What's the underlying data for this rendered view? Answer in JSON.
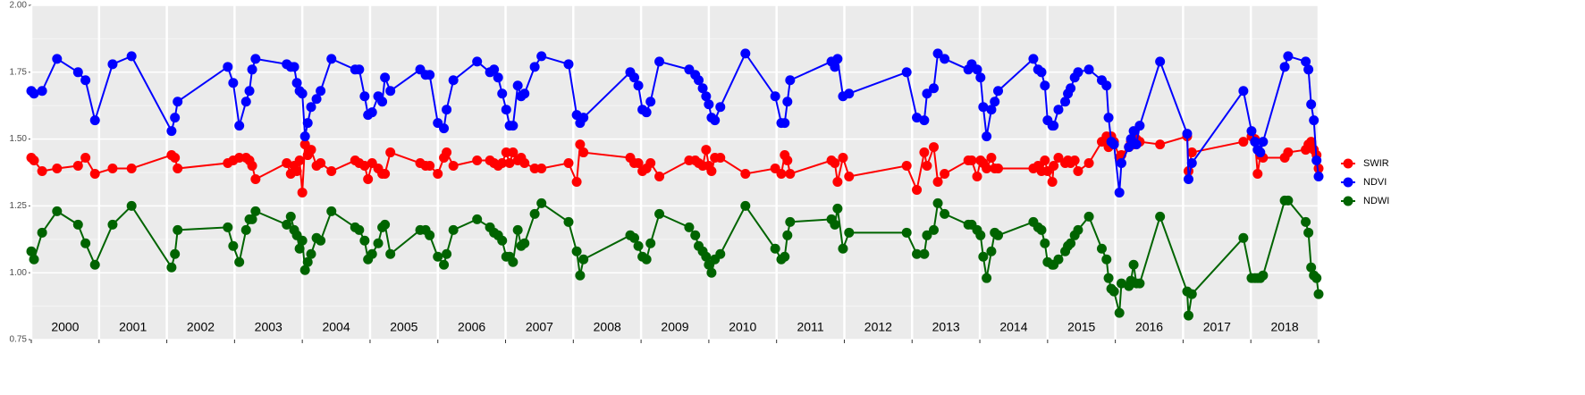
{
  "chart_data": {
    "type": "line",
    "x": [
      2000.0,
      2000.04,
      2000.16,
      2000.38,
      2000.69,
      2000.8,
      2000.94,
      2001.2,
      2001.48,
      2002.07,
      2002.12,
      2002.16,
      2002.9,
      2002.98,
      2003.07,
      2003.17,
      2003.22,
      2003.26,
      2003.31,
      2003.77,
      2003.83,
      2003.88,
      2003.92,
      2003.96,
      2004.0,
      2004.04,
      2004.08,
      2004.13,
      2004.21,
      2004.27,
      2004.43,
      2004.78,
      2004.84,
      2004.92,
      2004.97,
      2005.03,
      2005.12,
      2005.18,
      2005.22,
      2005.3,
      2005.74,
      2005.82,
      2005.88,
      2006.0,
      2006.09,
      2006.13,
      2006.23,
      2006.58,
      2006.77,
      2006.83,
      2006.89,
      2006.95,
      2007.01,
      2007.06,
      2007.11,
      2007.18,
      2007.23,
      2007.28,
      2007.43,
      2007.53,
      2007.93,
      2008.05,
      2008.1,
      2008.15,
      2008.84,
      2008.9,
      2008.96,
      2009.02,
      2009.08,
      2009.14,
      2009.27,
      2009.71,
      2009.8,
      2009.85,
      2009.91,
      2009.96,
      2010.0,
      2010.04,
      2010.09,
      2010.17,
      2010.54,
      2010.98,
      2011.07,
      2011.12,
      2011.16,
      2011.2,
      2011.81,
      2011.86,
      2011.9,
      2011.98,
      2012.07,
      2012.92,
      2013.07,
      2013.18,
      2013.22,
      2013.32,
      2013.38,
      2013.48,
      2013.83,
      2013.88,
      2013.96,
      2014.01,
      2014.05,
      2014.1,
      2014.17,
      2014.22,
      2014.27,
      2014.79,
      2014.86,
      2014.91,
      2014.96,
      2015.0,
      2015.07,
      2015.09,
      2015.16,
      2015.26,
      2015.3,
      2015.34,
      2015.4,
      2015.45,
      2015.61,
      2015.8,
      2015.87,
      2015.9,
      2015.94,
      2015.98,
      2016.06,
      2016.09,
      2016.2,
      2016.23,
      2016.27,
      2016.31,
      2016.36,
      2016.66,
      2017.06,
      2017.08,
      2017.13,
      2017.89,
      2018.01,
      2018.06,
      2018.1,
      2018.14,
      2018.18,
      2018.5,
      2018.55,
      2018.81,
      2018.85,
      2018.89,
      2018.93,
      2018.97,
      2019.0
    ],
    "series": [
      {
        "name": "SWIR",
        "color": "#ff0000",
        "values": [
          1.43,
          1.42,
          1.38,
          1.39,
          1.4,
          1.43,
          1.37,
          1.39,
          1.39,
          1.44,
          1.43,
          1.39,
          1.41,
          1.42,
          1.43,
          1.43,
          1.42,
          1.4,
          1.35,
          1.41,
          1.37,
          1.4,
          1.38,
          1.42,
          1.3,
          1.48,
          1.44,
          1.46,
          1.4,
          1.41,
          1.38,
          1.42,
          1.41,
          1.4,
          1.35,
          1.41,
          1.39,
          1.37,
          1.37,
          1.45,
          1.41,
          1.4,
          1.4,
          1.37,
          1.43,
          1.45,
          1.4,
          1.42,
          1.42,
          1.41,
          1.4,
          1.41,
          1.45,
          1.41,
          1.45,
          1.42,
          1.43,
          1.41,
          1.39,
          1.39,
          1.41,
          1.34,
          1.48,
          1.45,
          1.43,
          1.41,
          1.41,
          1.38,
          1.39,
          1.41,
          1.36,
          1.42,
          1.42,
          1.41,
          1.4,
          1.46,
          1.4,
          1.38,
          1.43,
          1.43,
          1.37,
          1.39,
          1.37,
          1.44,
          1.42,
          1.37,
          1.42,
          1.41,
          1.34,
          1.43,
          1.36,
          1.4,
          1.31,
          1.45,
          1.4,
          1.47,
          1.34,
          1.37,
          1.42,
          1.42,
          1.36,
          1.42,
          1.41,
          1.39,
          1.43,
          1.39,
          1.39,
          1.39,
          1.4,
          1.38,
          1.42,
          1.38,
          1.34,
          1.4,
          1.43,
          1.41,
          1.42,
          1.41,
          1.42,
          1.38,
          1.41,
          1.49,
          1.51,
          1.47,
          1.51,
          1.49,
          1.43,
          1.44,
          1.47,
          1.49,
          1.48,
          1.5,
          1.49,
          1.48,
          1.51,
          1.38,
          1.45,
          1.49,
          1.51,
          1.5,
          1.37,
          1.44,
          1.43,
          1.43,
          1.45,
          1.46,
          1.48,
          1.49,
          1.46,
          1.44,
          1.39
        ]
      },
      {
        "name": "NDVI",
        "color": "#0000ff",
        "values": [
          1.68,
          1.67,
          1.68,
          1.8,
          1.75,
          1.72,
          1.57,
          1.78,
          1.81,
          1.53,
          1.58,
          1.64,
          1.77,
          1.71,
          1.55,
          1.64,
          1.68,
          1.76,
          1.8,
          1.78,
          1.77,
          1.77,
          1.71,
          1.68,
          1.67,
          1.51,
          1.56,
          1.62,
          1.65,
          1.68,
          1.8,
          1.76,
          1.76,
          1.66,
          1.59,
          1.6,
          1.66,
          1.64,
          1.73,
          1.68,
          1.76,
          1.74,
          1.74,
          1.56,
          1.54,
          1.61,
          1.72,
          1.79,
          1.75,
          1.76,
          1.73,
          1.67,
          1.61,
          1.55,
          1.55,
          1.7,
          1.66,
          1.67,
          1.77,
          1.81,
          1.78,
          1.59,
          1.56,
          1.58,
          1.75,
          1.73,
          1.7,
          1.61,
          1.6,
          1.64,
          1.79,
          1.76,
          1.74,
          1.72,
          1.69,
          1.66,
          1.63,
          1.58,
          1.57,
          1.62,
          1.82,
          1.66,
          1.56,
          1.56,
          1.64,
          1.72,
          1.79,
          1.77,
          1.8,
          1.66,
          1.67,
          1.75,
          1.58,
          1.57,
          1.67,
          1.69,
          1.82,
          1.8,
          1.76,
          1.78,
          1.76,
          1.73,
          1.62,
          1.51,
          1.61,
          1.64,
          1.68,
          1.8,
          1.76,
          1.75,
          1.7,
          1.57,
          1.55,
          1.55,
          1.61,
          1.64,
          1.67,
          1.69,
          1.73,
          1.75,
          1.76,
          1.72,
          1.7,
          1.58,
          1.49,
          1.48,
          1.3,
          1.41,
          1.47,
          1.5,
          1.53,
          1.48,
          1.55,
          1.79,
          1.52,
          1.35,
          1.41,
          1.68,
          1.53,
          1.49,
          1.46,
          1.45,
          1.49,
          1.77,
          1.81,
          1.79,
          1.76,
          1.63,
          1.57,
          1.42,
          1.36
        ]
      },
      {
        "name": "NDWI",
        "color": "#006400",
        "values": [
          1.08,
          1.05,
          1.15,
          1.23,
          1.18,
          1.11,
          1.03,
          1.18,
          1.25,
          1.02,
          1.07,
          1.16,
          1.17,
          1.1,
          1.04,
          1.16,
          1.2,
          1.2,
          1.23,
          1.18,
          1.21,
          1.16,
          1.14,
          1.09,
          1.12,
          1.01,
          1.04,
          1.07,
          1.13,
          1.12,
          1.23,
          1.17,
          1.16,
          1.12,
          1.05,
          1.07,
          1.11,
          1.17,
          1.18,
          1.07,
          1.16,
          1.16,
          1.14,
          1.06,
          1.03,
          1.07,
          1.16,
          1.2,
          1.17,
          1.15,
          1.14,
          1.12,
          1.06,
          1.06,
          1.04,
          1.16,
          1.1,
          1.11,
          1.22,
          1.26,
          1.19,
          1.08,
          0.99,
          1.05,
          1.14,
          1.13,
          1.1,
          1.06,
          1.05,
          1.11,
          1.22,
          1.17,
          1.14,
          1.1,
          1.08,
          1.06,
          1.03,
          1.0,
          1.05,
          1.07,
          1.25,
          1.09,
          1.05,
          1.06,
          1.14,
          1.19,
          1.2,
          1.18,
          1.24,
          1.09,
          1.15,
          1.15,
          1.07,
          1.07,
          1.14,
          1.16,
          1.26,
          1.22,
          1.18,
          1.18,
          1.16,
          1.14,
          1.06,
          0.98,
          1.08,
          1.15,
          1.14,
          1.19,
          1.17,
          1.16,
          1.11,
          1.04,
          1.03,
          1.03,
          1.05,
          1.08,
          1.1,
          1.11,
          1.14,
          1.16,
          1.21,
          1.09,
          1.05,
          0.98,
          0.94,
          0.93,
          0.85,
          0.96,
          0.95,
          0.97,
          1.03,
          0.96,
          0.96,
          1.21,
          0.93,
          0.84,
          0.92,
          1.13,
          0.98,
          0.98,
          0.98,
          0.98,
          0.99,
          1.27,
          1.27,
          1.19,
          1.15,
          1.02,
          0.99,
          0.98,
          0.92
        ]
      }
    ],
    "xlim": [
      2000,
      2019
    ],
    "xticks": [
      2000,
      2001,
      2002,
      2003,
      2004,
      2005,
      2006,
      2007,
      2008,
      2009,
      2010,
      2011,
      2012,
      2013,
      2014,
      2015,
      2016,
      2017,
      2018,
      2019
    ],
    "year_labels": [
      2000,
      2001,
      2002,
      2003,
      2004,
      2005,
      2006,
      2007,
      2008,
      2009,
      2010,
      2011,
      2012,
      2013,
      2014,
      2015,
      2016,
      2017,
      2018
    ],
    "ylim": [
      0.75,
      2.0
    ],
    "yticks": [
      0.75,
      {
        "value": 1.0,
        "label": "1.00"
      },
      1.25,
      {
        "value": 1.5,
        "label": "1.50"
      },
      1.75,
      {
        "value": 2.0,
        "label": "2.00"
      }
    ],
    "grid": true,
    "legend": "right"
  }
}
